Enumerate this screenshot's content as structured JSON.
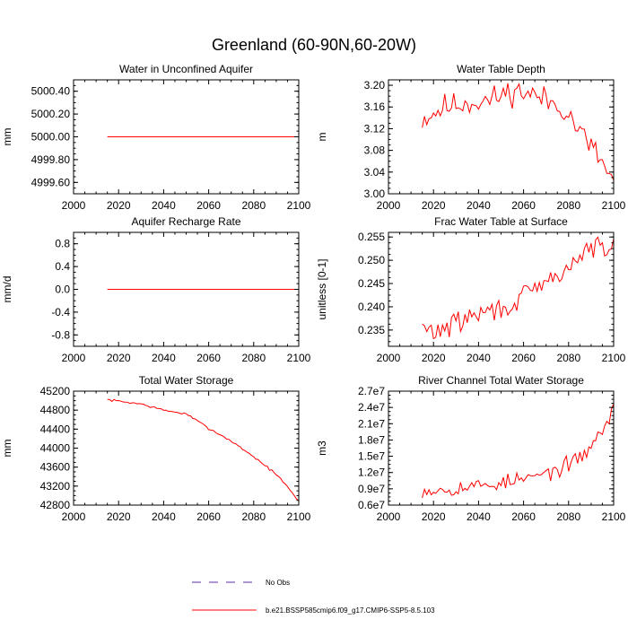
{
  "title": "Greenland (60-90N,60-20W)",
  "colors": {
    "series": "#ff0000",
    "obs": "#5a2ea6",
    "axis": "#000000"
  },
  "legend": {
    "entries": [
      {
        "label": "No Obs",
        "style": "dashed",
        "color": "#5a2ea6"
      },
      {
        "label": "b.e21.BSSP585cmip6.f09_g17.CMIP6-SSP5-8.5.103",
        "style": "solid",
        "color": "#ff0000"
      }
    ]
  },
  "chart_data": [
    {
      "type": "line",
      "title": "Water in Unconfined Aquifer",
      "xlabel": "",
      "ylabel": "mm",
      "xlim": [
        2000,
        2100
      ],
      "ylim": [
        4999.5,
        5000.5
      ],
      "xticks": [
        2000,
        2020,
        2040,
        2060,
        2080,
        2100
      ],
      "xtick_labels": [
        "2000",
        "2020",
        "2040",
        "2060",
        "2080",
        "2100"
      ],
      "yticks": [
        4999.6,
        4999.8,
        5000.0,
        5000.2,
        5000.4
      ],
      "ytick_labels": [
        "4999.60",
        "4999.80",
        "5000.00",
        "5000.20",
        "5000.40"
      ],
      "series": [
        {
          "name": "b.e21.BSSP585cmip6.f09_g17.CMIP6-SSP5-8.5.103",
          "x_start": 2015,
          "x_end": 2100,
          "kind": "constant",
          "value": 5000.0
        }
      ]
    },
    {
      "type": "line",
      "title": "Water Table Depth",
      "xlabel": "",
      "ylabel": "m",
      "xlim": [
        2000,
        2100
      ],
      "ylim": [
        3.0,
        3.21
      ],
      "xticks": [
        2000,
        2020,
        2040,
        2060,
        2080,
        2100
      ],
      "xtick_labels": [
        "2000",
        "2020",
        "2040",
        "2060",
        "2080",
        "2100"
      ],
      "yticks": [
        3.0,
        3.04,
        3.08,
        3.12,
        3.16,
        3.2
      ],
      "ytick_labels": [
        "3.00",
        "3.04",
        "3.08",
        "3.12",
        "3.16",
        "3.20"
      ],
      "series": [
        {
          "name": "b.e21.BSSP585cmip6.f09_g17.CMIP6-SSP5-8.5.103",
          "x_start": 2015,
          "x_end": 2100,
          "kind": "profile",
          "knots": [
            [
              2015,
              3.137
            ],
            [
              2025,
              3.16
            ],
            [
              2035,
              3.168
            ],
            [
              2045,
              3.172
            ],
            [
              2055,
              3.19
            ],
            [
              2062,
              3.186
            ],
            [
              2070,
              3.172
            ],
            [
              2078,
              3.158
            ],
            [
              2085,
              3.115
            ],
            [
              2092,
              3.075
            ],
            [
              2096,
              3.05
            ],
            [
              2100,
              3.02
            ]
          ],
          "jitter": 0.012,
          "seed": 11
        }
      ]
    },
    {
      "type": "line",
      "title": "Aquifer Recharge Rate",
      "xlabel": "",
      "ylabel": "mm/d",
      "xlim": [
        2000,
        2100
      ],
      "ylim": [
        -1.0,
        1.0
      ],
      "xticks": [
        2000,
        2020,
        2040,
        2060,
        2080,
        2100
      ],
      "xtick_labels": [
        "2000",
        "2020",
        "2040",
        "2060",
        "2080",
        "2100"
      ],
      "yticks": [
        -0.8,
        -0.4,
        0.0,
        0.4,
        0.8
      ],
      "ytick_labels": [
        "-0.8",
        "-0.4",
        "0.0",
        "0.4",
        "0.8"
      ],
      "series": [
        {
          "name": "b.e21.BSSP585cmip6.f09_g17.CMIP6-SSP5-8.5.103",
          "x_start": 2015,
          "x_end": 2100,
          "kind": "constant",
          "value": 0.0
        }
      ]
    },
    {
      "type": "line",
      "title": "Frac Water Table at Surface",
      "xlabel": "",
      "ylabel": "unitless [0-1]",
      "xlim": [
        2000,
        2100
      ],
      "ylim": [
        0.2315,
        0.256
      ],
      "xticks": [
        2000,
        2020,
        2040,
        2060,
        2080,
        2100
      ],
      "xtick_labels": [
        "2000",
        "2020",
        "2040",
        "2060",
        "2080",
        "2100"
      ],
      "yticks": [
        0.235,
        0.24,
        0.245,
        0.25,
        0.255
      ],
      "ytick_labels": [
        "0.235",
        "0.240",
        "0.245",
        "0.250",
        "0.255"
      ],
      "series": [
        {
          "name": "b.e21.BSSP585cmip6.f09_g17.CMIP6-SSP5-8.5.103",
          "x_start": 2015,
          "x_end": 2100,
          "kind": "profile",
          "knots": [
            [
              2015,
              0.2355
            ],
            [
              2020,
              0.2345
            ],
            [
              2030,
              0.2365
            ],
            [
              2040,
              0.2385
            ],
            [
              2050,
              0.2395
            ],
            [
              2060,
              0.242
            ],
            [
              2070,
              0.245
            ],
            [
              2080,
              0.2485
            ],
            [
              2088,
              0.252
            ],
            [
              2094,
              0.2535
            ],
            [
              2097,
              0.251
            ],
            [
              2100,
              0.2535
            ]
          ],
          "jitter": 0.0012,
          "seed": 29
        }
      ]
    },
    {
      "type": "line",
      "title": "Total Water Storage",
      "xlabel": "",
      "ylabel": "mm",
      "xlim": [
        2000,
        2100
      ],
      "ylim": [
        42800,
        45200
      ],
      "xticks": [
        2000,
        2020,
        2040,
        2060,
        2080,
        2100
      ],
      "xtick_labels": [
        "2000",
        "2020",
        "2040",
        "2060",
        "2080",
        "2100"
      ],
      "yticks": [
        42800,
        43200,
        43600,
        44000,
        44400,
        44800,
        45200
      ],
      "ytick_labels": [
        "42800",
        "43200",
        "43600",
        "44000",
        "44400",
        "44800",
        "45200"
      ],
      "series": [
        {
          "name": "b.e21.BSSP585cmip6.f09_g17.CMIP6-SSP5-8.5.103",
          "x_start": 2015,
          "x_end": 2100,
          "kind": "profile",
          "knots": [
            [
              2015,
              45020
            ],
            [
              2020,
              44990
            ],
            [
              2030,
              44930
            ],
            [
              2040,
              44800
            ],
            [
              2050,
              44720
            ],
            [
              2060,
              44420
            ],
            [
              2070,
              44150
            ],
            [
              2080,
              43820
            ],
            [
              2090,
              43450
            ],
            [
              2095,
              43180
            ],
            [
              2100,
              42880
            ]
          ],
          "jitter": 12,
          "seed": 7
        }
      ]
    },
    {
      "type": "line",
      "title": "River Channel Total Water Storage",
      "xlabel": "",
      "ylabel": "m3",
      "xlim": [
        2000,
        2100
      ],
      "ylim": [
        6000000,
        27000000
      ],
      "xticks": [
        2000,
        2020,
        2040,
        2060,
        2080,
        2100
      ],
      "xtick_labels": [
        "2000",
        "2020",
        "2040",
        "2060",
        "2080",
        "2100"
      ],
      "yticks": [
        6000000,
        9000000,
        12000000,
        15000000,
        18000000,
        21000000,
        24000000,
        27000000
      ],
      "ytick_labels": [
        "0.6e7",
        "0.9e7",
        "1.2e7",
        "1.5e7",
        "1.8e7",
        "2.1e7",
        "2.4e7",
        "2.7e7"
      ],
      "series": [
        {
          "name": "b.e21.BSSP585cmip6.f09_g17.CMIP6-SSP5-8.5.103",
          "x_start": 2015,
          "x_end": 2100,
          "kind": "profile",
          "knots": [
            [
              2015,
              8800000
            ],
            [
              2025,
              8900000
            ],
            [
              2035,
              9400000
            ],
            [
              2045,
              9800000
            ],
            [
              2055,
              10400000
            ],
            [
              2065,
              11200000
            ],
            [
              2075,
              12500000
            ],
            [
              2085,
              14500000
            ],
            [
              2092,
              18000000
            ],
            [
              2096,
              20500000
            ],
            [
              2100,
              23500000
            ]
          ],
          "jitter": 700000,
          "seed": 53
        }
      ]
    }
  ]
}
